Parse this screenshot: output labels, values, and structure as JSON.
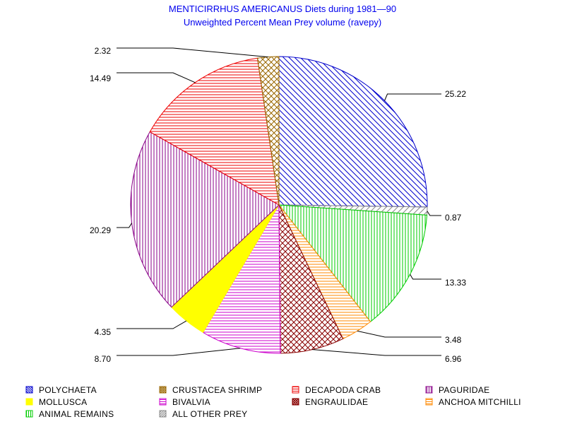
{
  "chart_data": {
    "type": "pie",
    "title": "MENTICIRRHUS AMERICANUS Diets during 1981—90",
    "subtitle": "Unweighted Percent Mean Prey volume (ravepy)",
    "slices": [
      {
        "name": "POLYCHAETA",
        "value": 25.22,
        "label": "25.22",
        "color": "#0000cc",
        "pattern": "diag-back"
      },
      {
        "name": "ALL OTHER PREY",
        "value": 0.87,
        "label": "0.87",
        "color": "#888888",
        "pattern": "diag-fwd"
      },
      {
        "name": "ANIMAL REMAINS",
        "value": 13.33,
        "label": "13.33",
        "color": "#00cc00",
        "pattern": "vertical"
      },
      {
        "name": "ANCHOA MITCHILLI",
        "value": 3.48,
        "label": "3.48",
        "color": "#ff8800",
        "pattern": "horizontal"
      },
      {
        "name": "ENGRAULIDAE",
        "value": 6.96,
        "label": "6.96",
        "color": "#880000",
        "pattern": "cross"
      },
      {
        "name": "BIVALVIA",
        "value": 8.7,
        "label": "8.70",
        "color": "#cc00cc",
        "pattern": "horizontal"
      },
      {
        "name": "MOLLUSCA",
        "value": 4.35,
        "label": "4.35",
        "color": "#ffff00",
        "pattern": "solid"
      },
      {
        "name": "PAGURIDAE",
        "value": 20.29,
        "label": "20.29",
        "color": "#880088",
        "pattern": "vertical"
      },
      {
        "name": "DECAPODA CRAB",
        "value": 14.49,
        "label": "14.49",
        "color": "#ee0000",
        "pattern": "horizontal"
      },
      {
        "name": "CRUSTACEA SHRIMP",
        "value": 2.32,
        "label": "2.32",
        "color": "#996600",
        "pattern": "cross"
      }
    ],
    "legend": [
      {
        "name": "POLYCHAETA",
        "color": "#0000cc",
        "pattern": "diag-back"
      },
      {
        "name": "CRUSTACEA SHRIMP",
        "color": "#996600",
        "pattern": "cross"
      },
      {
        "name": "DECAPODA CRAB",
        "color": "#ee0000",
        "pattern": "horizontal"
      },
      {
        "name": "PAGURIDAE",
        "color": "#880088",
        "pattern": "vertical"
      },
      {
        "name": "MOLLUSCA",
        "color": "#ffff00",
        "pattern": "solid"
      },
      {
        "name": "BIVALVIA",
        "color": "#cc00cc",
        "pattern": "horizontal"
      },
      {
        "name": "ENGRAULIDAE",
        "color": "#880000",
        "pattern": "cross"
      },
      {
        "name": "ANCHOA MITCHILLI",
        "color": "#ff8800",
        "pattern": "horizontal"
      },
      {
        "name": "ANIMAL REMAINS",
        "color": "#00cc00",
        "pattern": "vertical"
      },
      {
        "name": "ALL OTHER PREY",
        "color": "#888888",
        "pattern": "diag-fwd"
      }
    ],
    "legend_position": "bottom",
    "grid": false
  }
}
